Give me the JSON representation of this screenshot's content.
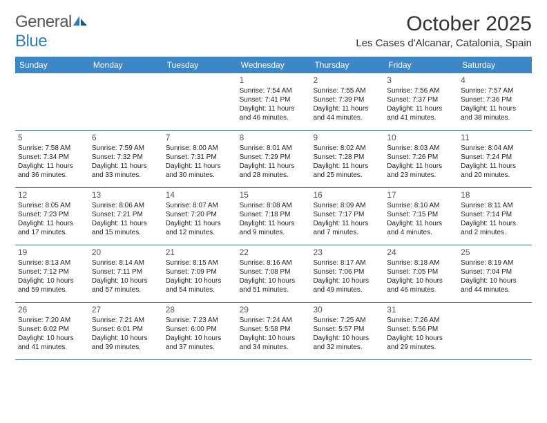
{
  "logo": {
    "word1": "General",
    "word2": "Blue"
  },
  "title": "October 2025",
  "location": "Les Cases d'Alcanar, Catalonia, Spain",
  "colors": {
    "header_bg": "#3d87c7",
    "header_text": "#ffffff",
    "rule": "#3d6a94",
    "logo_gray": "#555555",
    "logo_blue": "#2f7bbf",
    "text": "#222222"
  },
  "font": {
    "title_size": 30,
    "location_size": 15,
    "dow_size": 12,
    "daynum_size": 12,
    "body_size": 10
  },
  "dow": [
    "Sunday",
    "Monday",
    "Tuesday",
    "Wednesday",
    "Thursday",
    "Friday",
    "Saturday"
  ],
  "weeks": [
    [
      null,
      null,
      null,
      {
        "n": "1",
        "sr": "Sunrise: 7:54 AM",
        "ss": "Sunset: 7:41 PM",
        "d1": "Daylight: 11 hours",
        "d2": "and 46 minutes."
      },
      {
        "n": "2",
        "sr": "Sunrise: 7:55 AM",
        "ss": "Sunset: 7:39 PM",
        "d1": "Daylight: 11 hours",
        "d2": "and 44 minutes."
      },
      {
        "n": "3",
        "sr": "Sunrise: 7:56 AM",
        "ss": "Sunset: 7:37 PM",
        "d1": "Daylight: 11 hours",
        "d2": "and 41 minutes."
      },
      {
        "n": "4",
        "sr": "Sunrise: 7:57 AM",
        "ss": "Sunset: 7:36 PM",
        "d1": "Daylight: 11 hours",
        "d2": "and 38 minutes."
      }
    ],
    [
      {
        "n": "5",
        "sr": "Sunrise: 7:58 AM",
        "ss": "Sunset: 7:34 PM",
        "d1": "Daylight: 11 hours",
        "d2": "and 36 minutes."
      },
      {
        "n": "6",
        "sr": "Sunrise: 7:59 AM",
        "ss": "Sunset: 7:32 PM",
        "d1": "Daylight: 11 hours",
        "d2": "and 33 minutes."
      },
      {
        "n": "7",
        "sr": "Sunrise: 8:00 AM",
        "ss": "Sunset: 7:31 PM",
        "d1": "Daylight: 11 hours",
        "d2": "and 30 minutes."
      },
      {
        "n": "8",
        "sr": "Sunrise: 8:01 AM",
        "ss": "Sunset: 7:29 PM",
        "d1": "Daylight: 11 hours",
        "d2": "and 28 minutes."
      },
      {
        "n": "9",
        "sr": "Sunrise: 8:02 AM",
        "ss": "Sunset: 7:28 PM",
        "d1": "Daylight: 11 hours",
        "d2": "and 25 minutes."
      },
      {
        "n": "10",
        "sr": "Sunrise: 8:03 AM",
        "ss": "Sunset: 7:26 PM",
        "d1": "Daylight: 11 hours",
        "d2": "and 23 minutes."
      },
      {
        "n": "11",
        "sr": "Sunrise: 8:04 AM",
        "ss": "Sunset: 7:24 PM",
        "d1": "Daylight: 11 hours",
        "d2": "and 20 minutes."
      }
    ],
    [
      {
        "n": "12",
        "sr": "Sunrise: 8:05 AM",
        "ss": "Sunset: 7:23 PM",
        "d1": "Daylight: 11 hours",
        "d2": "and 17 minutes."
      },
      {
        "n": "13",
        "sr": "Sunrise: 8:06 AM",
        "ss": "Sunset: 7:21 PM",
        "d1": "Daylight: 11 hours",
        "d2": "and 15 minutes."
      },
      {
        "n": "14",
        "sr": "Sunrise: 8:07 AM",
        "ss": "Sunset: 7:20 PM",
        "d1": "Daylight: 11 hours",
        "d2": "and 12 minutes."
      },
      {
        "n": "15",
        "sr": "Sunrise: 8:08 AM",
        "ss": "Sunset: 7:18 PM",
        "d1": "Daylight: 11 hours",
        "d2": "and 9 minutes."
      },
      {
        "n": "16",
        "sr": "Sunrise: 8:09 AM",
        "ss": "Sunset: 7:17 PM",
        "d1": "Daylight: 11 hours",
        "d2": "and 7 minutes."
      },
      {
        "n": "17",
        "sr": "Sunrise: 8:10 AM",
        "ss": "Sunset: 7:15 PM",
        "d1": "Daylight: 11 hours",
        "d2": "and 4 minutes."
      },
      {
        "n": "18",
        "sr": "Sunrise: 8:11 AM",
        "ss": "Sunset: 7:14 PM",
        "d1": "Daylight: 11 hours",
        "d2": "and 2 minutes."
      }
    ],
    [
      {
        "n": "19",
        "sr": "Sunrise: 8:13 AM",
        "ss": "Sunset: 7:12 PM",
        "d1": "Daylight: 10 hours",
        "d2": "and 59 minutes."
      },
      {
        "n": "20",
        "sr": "Sunrise: 8:14 AM",
        "ss": "Sunset: 7:11 PM",
        "d1": "Daylight: 10 hours",
        "d2": "and 57 minutes."
      },
      {
        "n": "21",
        "sr": "Sunrise: 8:15 AM",
        "ss": "Sunset: 7:09 PM",
        "d1": "Daylight: 10 hours",
        "d2": "and 54 minutes."
      },
      {
        "n": "22",
        "sr": "Sunrise: 8:16 AM",
        "ss": "Sunset: 7:08 PM",
        "d1": "Daylight: 10 hours",
        "d2": "and 51 minutes."
      },
      {
        "n": "23",
        "sr": "Sunrise: 8:17 AM",
        "ss": "Sunset: 7:06 PM",
        "d1": "Daylight: 10 hours",
        "d2": "and 49 minutes."
      },
      {
        "n": "24",
        "sr": "Sunrise: 8:18 AM",
        "ss": "Sunset: 7:05 PM",
        "d1": "Daylight: 10 hours",
        "d2": "and 46 minutes."
      },
      {
        "n": "25",
        "sr": "Sunrise: 8:19 AM",
        "ss": "Sunset: 7:04 PM",
        "d1": "Daylight: 10 hours",
        "d2": "and 44 minutes."
      }
    ],
    [
      {
        "n": "26",
        "sr": "Sunrise: 7:20 AM",
        "ss": "Sunset: 6:02 PM",
        "d1": "Daylight: 10 hours",
        "d2": "and 41 minutes."
      },
      {
        "n": "27",
        "sr": "Sunrise: 7:21 AM",
        "ss": "Sunset: 6:01 PM",
        "d1": "Daylight: 10 hours",
        "d2": "and 39 minutes."
      },
      {
        "n": "28",
        "sr": "Sunrise: 7:23 AM",
        "ss": "Sunset: 6:00 PM",
        "d1": "Daylight: 10 hours",
        "d2": "and 37 minutes."
      },
      {
        "n": "29",
        "sr": "Sunrise: 7:24 AM",
        "ss": "Sunset: 5:58 PM",
        "d1": "Daylight: 10 hours",
        "d2": "and 34 minutes."
      },
      {
        "n": "30",
        "sr": "Sunrise: 7:25 AM",
        "ss": "Sunset: 5:57 PM",
        "d1": "Daylight: 10 hours",
        "d2": "and 32 minutes."
      },
      {
        "n": "31",
        "sr": "Sunrise: 7:26 AM",
        "ss": "Sunset: 5:56 PM",
        "d1": "Daylight: 10 hours",
        "d2": "and 29 minutes."
      },
      null
    ]
  ]
}
